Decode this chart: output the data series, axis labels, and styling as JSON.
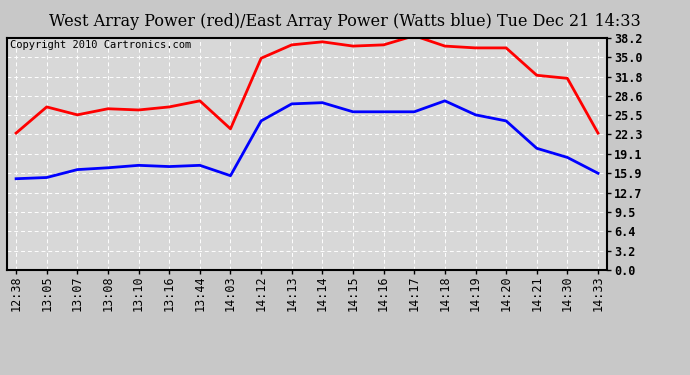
{
  "title": "West Array Power (red)/East Array Power (Watts blue) Tue Dec 21 14:33",
  "copyright": "Copyright 2010 Cartronics.com",
  "x_labels": [
    "12:38",
    "13:05",
    "13:07",
    "13:08",
    "13:10",
    "13:16",
    "13:44",
    "14:03",
    "14:12",
    "14:13",
    "14:14",
    "14:15",
    "14:16",
    "14:17",
    "14:18",
    "14:19",
    "14:20",
    "14:21",
    "14:30",
    "14:33"
  ],
  "red_values": [
    22.5,
    26.8,
    25.5,
    26.5,
    26.3,
    26.8,
    27.8,
    23.2,
    34.8,
    37.0,
    37.5,
    36.8,
    37.0,
    38.5,
    36.8,
    36.5,
    36.5,
    32.0,
    31.5,
    22.5
  ],
  "blue_values": [
    15.0,
    15.2,
    16.5,
    16.8,
    17.2,
    17.0,
    17.2,
    15.5,
    24.5,
    27.3,
    27.5,
    26.0,
    26.0,
    26.0,
    27.8,
    25.5,
    24.5,
    20.0,
    18.5,
    15.9
  ],
  "yticks": [
    0.0,
    3.2,
    6.4,
    9.5,
    12.7,
    15.9,
    19.1,
    22.3,
    25.5,
    28.6,
    31.8,
    35.0,
    38.2
  ],
  "ymin": 0.0,
  "ymax": 38.2,
  "red_color": "#ff0000",
  "blue_color": "#0000ff",
  "background_color": "#c8c8c8",
  "plot_bg_color": "#d8d8d8",
  "grid_color": "#ffffff",
  "title_fontsize": 11.5,
  "copyright_fontsize": 7.5,
  "tick_fontsize": 8.5,
  "line_width": 2.0
}
